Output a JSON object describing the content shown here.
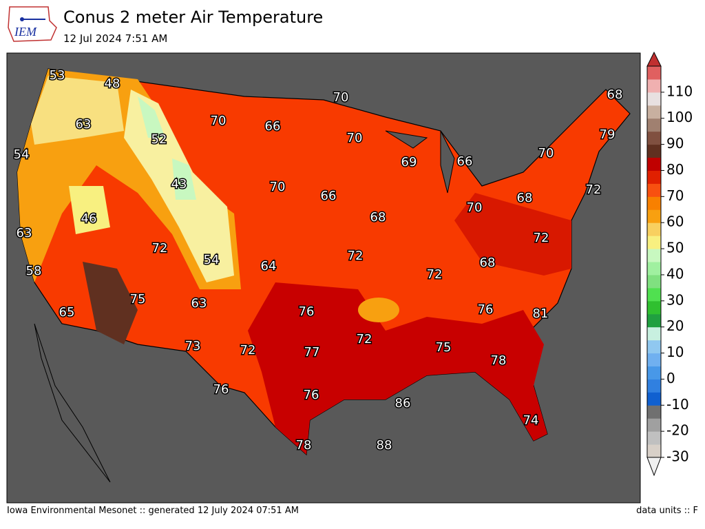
{
  "header": {
    "title": "Conus 2 meter Air Temperature",
    "subtitle": "12 Jul 2024 7:51 AM",
    "logo": "IEM"
  },
  "map": {
    "labels": [
      53,
      48,
      70,
      68,
      63,
      70,
      66,
      52,
      70,
      79,
      54,
      69,
      66,
      70,
      43,
      70,
      66,
      72,
      68,
      46,
      70,
      68,
      63,
      72,
      72,
      72,
      54,
      64,
      68,
      58,
      72,
      75,
      63,
      76,
      76,
      81,
      65,
      72,
      73,
      72,
      77,
      75,
      78,
      76,
      76,
      86,
      74,
      78,
      88
    ]
  },
  "colorbar": {
    "lim": [
      -30,
      120
    ],
    "ticks": [
      -30,
      -20,
      -10,
      0,
      10,
      20,
      30,
      40,
      50,
      60,
      70,
      80,
      90,
      100,
      110
    ],
    "colors": [
      "#d8d0c8",
      "#c0c0c0",
      "#a0a0a0",
      "#707070",
      "#1060d0",
      "#3080e0",
      "#4898e8",
      "#70b0f0",
      "#90c8f0",
      "#c8f0e0",
      "#20a040",
      "#30c030",
      "#50e050",
      "#80e080",
      "#a0f0a0",
      "#c8f8c0",
      "#f8f080",
      "#f8d060",
      "#f8a010",
      "#f88000",
      "#f85010",
      "#e02000",
      "#c00000",
      "#603020",
      "#805040",
      "#a08070",
      "#c8b0a0",
      "#e8e0e0",
      "#f0b0b0",
      "#e06060"
    ],
    "under_color": "#f0f0f0",
    "over_color": "#c03030"
  },
  "footer": {
    "left": "Iowa Environmental Mesonet :: generated 12 July 2024 07:51 AM",
    "right": "data units :: F"
  }
}
